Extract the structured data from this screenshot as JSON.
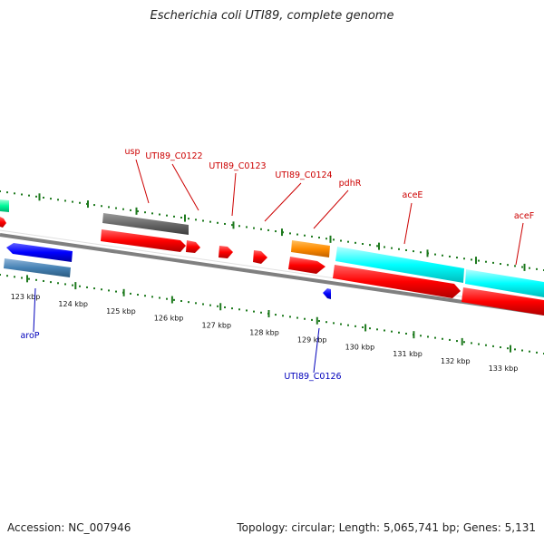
{
  "title": "Escherichia coli UTI89, complete genome",
  "footer": {
    "accession": "Accession: NC_007946",
    "stats": "Topology: circular; Length: 5,065,741 bp; Genes: 5,131"
  },
  "map": {
    "tick_labels": [
      "123 kbp",
      "124 kbp",
      "125 kbp",
      "126 kbp",
      "127 kbp",
      "128 kbp",
      "129 kbp",
      "130 kbp",
      "131 kbp",
      "132 kbp",
      "133 kbp"
    ],
    "forward_labels": [
      "usp",
      "UTI89_C0122",
      "UTI89_C0123",
      "UTI89_C0124",
      "pdhR",
      "aceE",
      "aceF"
    ],
    "reverse_labels": [
      "aroP",
      "UTI89_C0126"
    ],
    "colors": {
      "forward_label": "#cc0000",
      "reverse_label": "#0000bb",
      "tick": "#1e7a1e",
      "backbone": "#808080",
      "cds": "#ff0000",
      "gene": "#606060",
      "trna": "#ff8c00",
      "highlight": "#00ffff",
      "reverse_cds": "#0000ff",
      "reverse_gene": "#4682b4",
      "misc": "#00fa9a"
    }
  }
}
